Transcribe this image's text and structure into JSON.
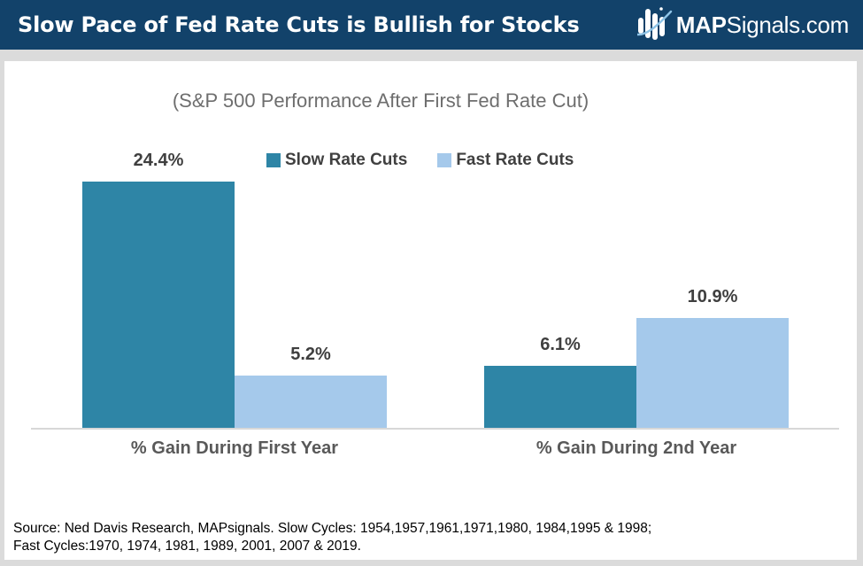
{
  "header": {
    "title": "Slow Pace of Fed Rate Cuts is Bullish for Stocks",
    "logo": {
      "brand_bold": "MAP",
      "brand_rest": "Signals.com",
      "icon": "mapsignals-bars-swoosh-icon"
    }
  },
  "chart": {
    "subtitle": "(S&P 500 Performance After First Fed Rate Cut)"
  },
  "chart_data": {
    "type": "bar",
    "title": "(S&P 500 Performance After First Fed Rate Cut)",
    "categories": [
      "% Gain During First Year",
      "% Gain During 2nd Year"
    ],
    "series": [
      {
        "name": "Slow Rate Cuts",
        "color": "#2E85A6",
        "values": [
          24.4,
          6.1
        ],
        "labels": [
          "24.4%",
          "6.1%"
        ]
      },
      {
        "name": "Fast Rate Cuts",
        "color": "#A5C9EB",
        "values": [
          5.2,
          10.9
        ],
        "labels": [
          "5.2%",
          "10.9%"
        ]
      }
    ],
    "ylim": [
      0,
      26
    ],
    "grid": false,
    "axis_ticks_visible": false,
    "legend_position": "top-center",
    "value_label_format": "percent"
  },
  "footer": {
    "source_line1": "Source: Ned Davis Research, MAPsignals. Slow Cycles: 1954,1957,1961,1971,1980, 1984,1995 & 1998;",
    "source_line2": "Fast Cycles:1970, 1974, 1981, 1989, 2001, 2007 & 2019."
  },
  "colors": {
    "header_background": "#12426A",
    "slow_series": "#2E85A6",
    "fast_series": "#A5C9EB",
    "page_background": "#DBDBDB",
    "panel_background": "#FFFFFF",
    "axis_line": "#D8D8D8",
    "subtitle_text": "#6E6E6E",
    "label_text": "#3F3F3F",
    "logo_swoosh": "#8EC3E6"
  }
}
